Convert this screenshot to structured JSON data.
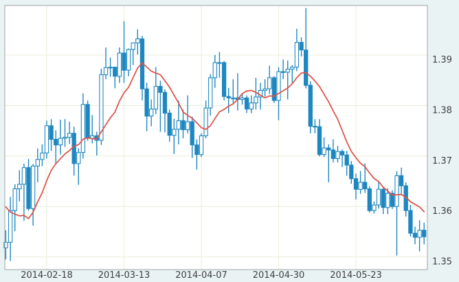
{
  "chart_data": {
    "type": "candlestick",
    "title": "",
    "xlabel": "",
    "ylabel": "",
    "legend": "none",
    "grid": true,
    "y_axis": {
      "position": "right",
      "ticks": [
        1.39,
        1.38,
        1.37,
        1.36,
        1.35
      ],
      "range": [
        1.3475,
        1.3998
      ],
      "decimals": 2
    },
    "x_axis": {
      "tick_labels": [
        "2014-02-18",
        "2014-03-13",
        "2014-04-07",
        "2014-04-30",
        "2014-05-23"
      ],
      "tick_indices": [
        9,
        26,
        43,
        60,
        77
      ]
    },
    "colors": {
      "candle": "#1e87c0",
      "candle_up_fill": "#ffffff",
      "candle_down_fill": "#1e87c0",
      "ma_line": "#dd564c",
      "grid": "#e8eed8",
      "plot_bg": "#ffffff",
      "outer_bg": "#e9f3f3",
      "border": "#a0a0a0",
      "label": "#3f3f3f"
    },
    "series": [
      {
        "name": "price",
        "type": "ohlc",
        "dates": [
          "2014-02-05",
          "2014-02-06",
          "2014-02-07",
          "2014-02-10",
          "2014-02-11",
          "2014-02-12",
          "2014-02-13",
          "2014-02-14",
          "2014-02-17",
          "2014-02-18",
          "2014-02-19",
          "2014-02-20",
          "2014-02-21",
          "2014-02-24",
          "2014-02-25",
          "2014-02-26",
          "2014-02-27",
          "2014-02-28",
          "2014-03-03",
          "2014-03-04",
          "2014-03-05",
          "2014-03-06",
          "2014-03-07",
          "2014-03-10",
          "2014-03-11",
          "2014-03-12",
          "2014-03-13",
          "2014-03-14",
          "2014-03-17",
          "2014-03-18",
          "2014-03-19",
          "2014-03-20",
          "2014-03-21",
          "2014-03-24",
          "2014-03-25",
          "2014-03-26",
          "2014-03-27",
          "2014-03-28",
          "2014-03-31",
          "2014-04-01",
          "2014-04-02",
          "2014-04-03",
          "2014-04-04",
          "2014-04-07",
          "2014-04-08",
          "2014-04-09",
          "2014-04-10",
          "2014-04-11",
          "2014-04-14",
          "2014-04-15",
          "2014-04-16",
          "2014-04-17",
          "2014-04-18",
          "2014-04-21",
          "2014-04-22",
          "2014-04-23",
          "2014-04-24",
          "2014-04-25",
          "2014-04-28",
          "2014-04-29",
          "2014-04-30",
          "2014-05-01",
          "2014-05-02",
          "2014-05-05",
          "2014-05-06",
          "2014-05-07",
          "2014-05-08",
          "2014-05-09",
          "2014-05-12",
          "2014-05-13",
          "2014-05-14",
          "2014-05-15",
          "2014-05-16",
          "2014-05-19",
          "2014-05-20",
          "2014-05-21",
          "2014-05-22",
          "2014-05-23",
          "2014-05-26",
          "2014-05-27",
          "2014-05-28",
          "2014-05-29",
          "2014-05-30",
          "2014-06-02",
          "2014-06-03",
          "2014-06-04",
          "2014-06-05",
          "2014-06-06",
          "2014-06-09",
          "2014-06-10",
          "2014-06-11",
          "2014-06-12",
          "2014-06-13"
        ],
        "open": [
          1.3518,
          1.3529,
          1.3592,
          1.3635,
          1.3644,
          1.3677,
          1.3596,
          1.368,
          1.3693,
          1.3706,
          1.376,
          1.3733,
          1.3722,
          1.3735,
          1.3737,
          1.3745,
          1.3685,
          1.3707,
          1.3802,
          1.3735,
          1.374,
          1.3731,
          1.3861,
          1.3875,
          1.3876,
          1.3858,
          1.3904,
          1.387,
          1.3911,
          1.3924,
          1.3932,
          1.3833,
          1.3779,
          1.3793,
          1.3838,
          1.3826,
          1.3785,
          1.3741,
          1.3753,
          1.377,
          1.3752,
          1.3768,
          1.3722,
          1.3703,
          1.374,
          1.3795,
          1.3855,
          1.3885,
          1.3885,
          1.3818,
          1.3815,
          1.3815,
          1.3812,
          1.3815,
          1.3793,
          1.3805,
          1.3817,
          1.383,
          1.3833,
          1.3855,
          1.381,
          1.3867,
          1.3866,
          1.3872,
          1.3876,
          1.3925,
          1.391,
          1.384,
          1.3759,
          1.3758,
          1.3703,
          1.3716,
          1.3712,
          1.3695,
          1.3709,
          1.3702,
          1.3682,
          1.3655,
          1.3634,
          1.3648,
          1.3635,
          1.3592,
          1.3603,
          1.3634,
          1.3598,
          1.3626,
          1.36,
          1.3661,
          1.3641,
          1.3592,
          1.3547,
          1.3539,
          1.3553
        ],
        "high": [
          1.3553,
          1.3619,
          1.3644,
          1.3672,
          1.3685,
          1.3694,
          1.3684,
          1.3715,
          1.3723,
          1.377,
          1.3773,
          1.3751,
          1.3772,
          1.3773,
          1.3768,
          1.3758,
          1.3715,
          1.3824,
          1.381,
          1.3781,
          1.3748,
          1.3873,
          1.3915,
          1.3895,
          1.3876,
          1.3915,
          1.3967,
          1.3913,
          1.3925,
          1.3951,
          1.3938,
          1.3845,
          1.3812,
          1.3876,
          1.3849,
          1.3832,
          1.3792,
          1.3774,
          1.381,
          1.3792,
          1.382,
          1.3778,
          1.3733,
          1.3745,
          1.381,
          1.3862,
          1.39,
          1.3906,
          1.3888,
          1.3835,
          1.3852,
          1.3864,
          1.3822,
          1.382,
          1.382,
          1.3855,
          1.3845,
          1.3852,
          1.3879,
          1.3858,
          1.3876,
          1.3891,
          1.3889,
          1.388,
          1.3952,
          1.3935,
          1.3993,
          1.3848,
          1.3773,
          1.3773,
          1.3737,
          1.3723,
          1.3733,
          1.372,
          1.3713,
          1.371,
          1.369,
          1.3665,
          1.367,
          1.3685,
          1.364,
          1.361,
          1.365,
          1.3637,
          1.3636,
          1.3632,
          1.367,
          1.3677,
          1.3648,
          1.3603,
          1.356,
          1.3573,
          1.3568
        ],
        "low": [
          1.3495,
          1.3492,
          1.3551,
          1.361,
          1.3572,
          1.3592,
          1.3562,
          1.3648,
          1.368,
          1.3695,
          1.371,
          1.3685,
          1.3703,
          1.3718,
          1.3724,
          1.3661,
          1.3643,
          1.3695,
          1.373,
          1.3725,
          1.3701,
          1.3722,
          1.3852,
          1.3857,
          1.3834,
          1.3845,
          1.3845,
          1.3858,
          1.388,
          1.3901,
          1.381,
          1.3749,
          1.3759,
          1.3783,
          1.3748,
          1.3747,
          1.3728,
          1.3704,
          1.3723,
          1.3735,
          1.3745,
          1.3696,
          1.3673,
          1.3698,
          1.3735,
          1.378,
          1.3835,
          1.3855,
          1.381,
          1.3785,
          1.3805,
          1.379,
          1.3802,
          1.3785,
          1.3785,
          1.3792,
          1.3792,
          1.3818,
          1.3823,
          1.3805,
          1.3771,
          1.3852,
          1.3812,
          1.3845,
          1.3868,
          1.3897,
          1.3834,
          1.3745,
          1.3745,
          1.3699,
          1.3698,
          1.3648,
          1.3687,
          1.3687,
          1.3678,
          1.3661,
          1.3645,
          1.3614,
          1.3625,
          1.3627,
          1.3588,
          1.3586,
          1.3596,
          1.3585,
          1.3585,
          1.3595,
          1.3503,
          1.3625,
          1.358,
          1.354,
          1.3525,
          1.3511,
          1.3525
        ],
        "close": [
          1.3529,
          1.3592,
          1.3635,
          1.3644,
          1.3677,
          1.3596,
          1.368,
          1.3693,
          1.3706,
          1.376,
          1.3733,
          1.3722,
          1.3735,
          1.3737,
          1.3745,
          1.3685,
          1.3707,
          1.3802,
          1.3735,
          1.374,
          1.3731,
          1.3861,
          1.3875,
          1.3876,
          1.3858,
          1.3904,
          1.387,
          1.3911,
          1.3924,
          1.3932,
          1.3833,
          1.3779,
          1.3793,
          1.3838,
          1.3826,
          1.3785,
          1.3741,
          1.3753,
          1.377,
          1.3752,
          1.3768,
          1.3722,
          1.3703,
          1.374,
          1.3795,
          1.3855,
          1.3885,
          1.3885,
          1.3818,
          1.3815,
          1.3815,
          1.3812,
          1.3815,
          1.3793,
          1.3805,
          1.3817,
          1.383,
          1.3833,
          1.3855,
          1.381,
          1.3867,
          1.3866,
          1.3872,
          1.3876,
          1.3925,
          1.391,
          1.384,
          1.3759,
          1.3758,
          1.3703,
          1.3716,
          1.3712,
          1.3695,
          1.3709,
          1.3702,
          1.3682,
          1.3655,
          1.3634,
          1.3648,
          1.3635,
          1.3592,
          1.3603,
          1.3634,
          1.3598,
          1.3626,
          1.36,
          1.3661,
          1.3641,
          1.3592,
          1.3547,
          1.3539,
          1.3553,
          1.354
        ]
      },
      {
        "name": "moving_average",
        "type": "line",
        "values": [
          1.3599,
          1.35889,
          1.35846,
          1.35815,
          1.35824,
          1.3576,
          1.35885,
          1.36092,
          1.36271,
          1.36512,
          1.36716,
          1.36846,
          1.36946,
          1.37039,
          1.37107,
          1.37196,
          1.37223,
          1.37332,
          1.37361,
          1.37341,
          1.37339,
          1.37478,
          1.37618,
          1.37757,
          1.3787,
          1.38089,
          1.38252,
          1.38361,
          1.3855,
          1.38742,
          1.38844,
          1.38762,
          1.3868,
          1.38642,
          1.3861,
          1.38491,
          1.38362,
          1.38204,
          1.3805,
          1.3787,
          1.37805,
          1.37748,
          1.37658,
          1.3756,
          1.37529,
          1.37599,
          1.37743,
          1.37875,
          1.37923,
          1.37986,
          1.38033,
          1.38123,
          1.38235,
          1.38288,
          1.38298,
          1.3826,
          1.38205,
          1.38153,
          1.3819,
          1.38185,
          1.38237,
          1.38291,
          1.38348,
          1.38431,
          1.38551,
          1.38644,
          1.38654,
          1.3858,
          1.38483,
          1.38376,
          1.38225,
          1.38071,
          1.37894,
          1.37727,
          1.37504,
          1.37276,
          1.37091,
          1.36966,
          1.36856,
          1.36788,
          1.36664,
          1.36555,
          1.36494,
          1.36383,
          1.36307,
          1.36225,
          1.36231,
          1.36238,
          1.36182,
          1.36094,
          1.36041,
          1.35991,
          1.35897
        ]
      }
    ]
  }
}
